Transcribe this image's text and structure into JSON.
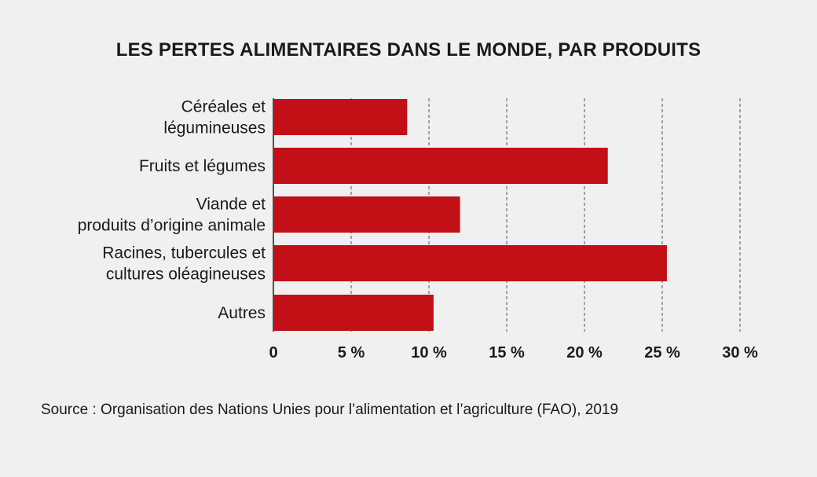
{
  "chart_data": {
    "type": "bar",
    "orientation": "horizontal",
    "title": "LES PERTES ALIMENTAIRES DANS LE MONDE, PAR PRODUITS",
    "categories": [
      [
        "Céréales et",
        "légumineuses"
      ],
      [
        "Fruits et légumes"
      ],
      [
        "Viande et",
        "produits d’origine animale"
      ],
      [
        "Racines, tubercules et",
        "cultures oléagineuses"
      ],
      [
        "Autres"
      ]
    ],
    "values": [
      8.6,
      21.5,
      12.0,
      25.3,
      10.3
    ],
    "xlim": [
      0,
      30
    ],
    "xticks": [
      0,
      5,
      10,
      15,
      20,
      25,
      30
    ],
    "xtick_labels": [
      "0",
      "5 %",
      "10 %",
      "15 %",
      "20 %",
      "25 %",
      "30 %"
    ],
    "grid": "vertical-dashed",
    "bar_color": "#c30f16",
    "source": "Source : Organisation des Nations Unies pour l’alimentation et l’agriculture (FAO), 2019"
  }
}
